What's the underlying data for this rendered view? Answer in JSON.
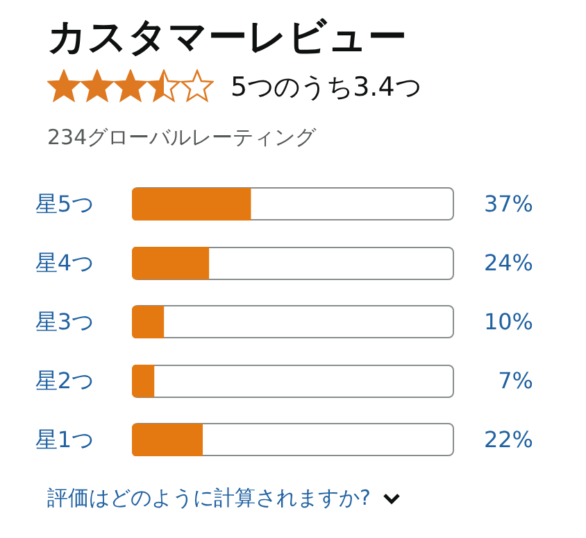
{
  "chart_data": {
    "type": "bar",
    "orientation": "horizontal",
    "title": "カスタマーレビュー",
    "subtitle": "5つのうち3.4つ",
    "categories": [
      "星5つ",
      "星4つ",
      "星3つ",
      "星2つ",
      "星1つ"
    ],
    "values": [
      37,
      24,
      10,
      7,
      22
    ],
    "value_labels": [
      "37%",
      "24%",
      "10%",
      "7%",
      "22%"
    ],
    "color": "#e47911",
    "xlim": [
      0,
      100
    ],
    "tick_labels": "y",
    "annotations": [
      "234グローバルレーティング",
      "評価はどのように計算されますか?"
    ]
  }
}
